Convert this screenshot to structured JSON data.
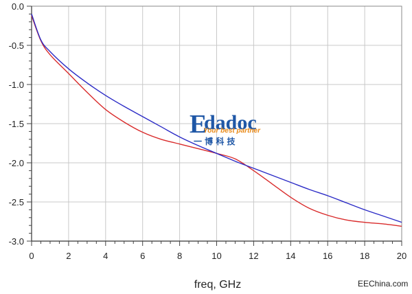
{
  "chart_data": {
    "type": "line",
    "title": "",
    "xlabel": "freq, GHz",
    "ylabel": "",
    "xlim": [
      0,
      20
    ],
    "ylim": [
      -3.0,
      0.0
    ],
    "x_ticks": [
      "0",
      "2",
      "4",
      "6",
      "8",
      "10",
      "12",
      "14",
      "16",
      "18",
      "20"
    ],
    "y_ticks": [
      "0.0",
      "-0.5",
      "-1.0",
      "-1.5",
      "-2.0",
      "-2.5",
      "-3.0"
    ],
    "grid": true,
    "series": [
      {
        "color": "#d92b2b",
        "x": [
          0,
          0.5,
          1,
          2,
          3,
          4,
          5,
          6,
          7,
          8,
          9,
          10,
          11,
          12,
          13,
          14,
          15,
          16,
          17,
          18,
          19,
          20
        ],
        "y": [
          -0.12,
          -0.44,
          -0.62,
          -0.86,
          -1.1,
          -1.32,
          -1.48,
          -1.61,
          -1.7,
          -1.76,
          -1.82,
          -1.88,
          -1.95,
          -2.1,
          -2.27,
          -2.44,
          -2.58,
          -2.67,
          -2.73,
          -2.76,
          -2.78,
          -2.81
        ]
      },
      {
        "color": "#2b2bc6",
        "x": [
          0,
          0.5,
          1,
          2,
          3,
          4,
          5,
          6,
          7,
          8,
          9,
          10,
          11,
          12,
          13,
          14,
          15,
          16,
          17,
          18,
          19,
          20
        ],
        "y": [
          -0.1,
          -0.43,
          -0.58,
          -0.8,
          -0.98,
          -1.14,
          -1.28,
          -1.41,
          -1.54,
          -1.67,
          -1.78,
          -1.88,
          -1.98,
          -2.07,
          -2.16,
          -2.25,
          -2.34,
          -2.42,
          -2.51,
          -2.6,
          -2.68,
          -2.76
        ]
      }
    ]
  },
  "watermark": {
    "logo_e": "E",
    "logo_rest": "dadoc",
    "tagline": "Your best partner",
    "chinese": "一 博 科 技"
  },
  "credit": "EEChina.com"
}
